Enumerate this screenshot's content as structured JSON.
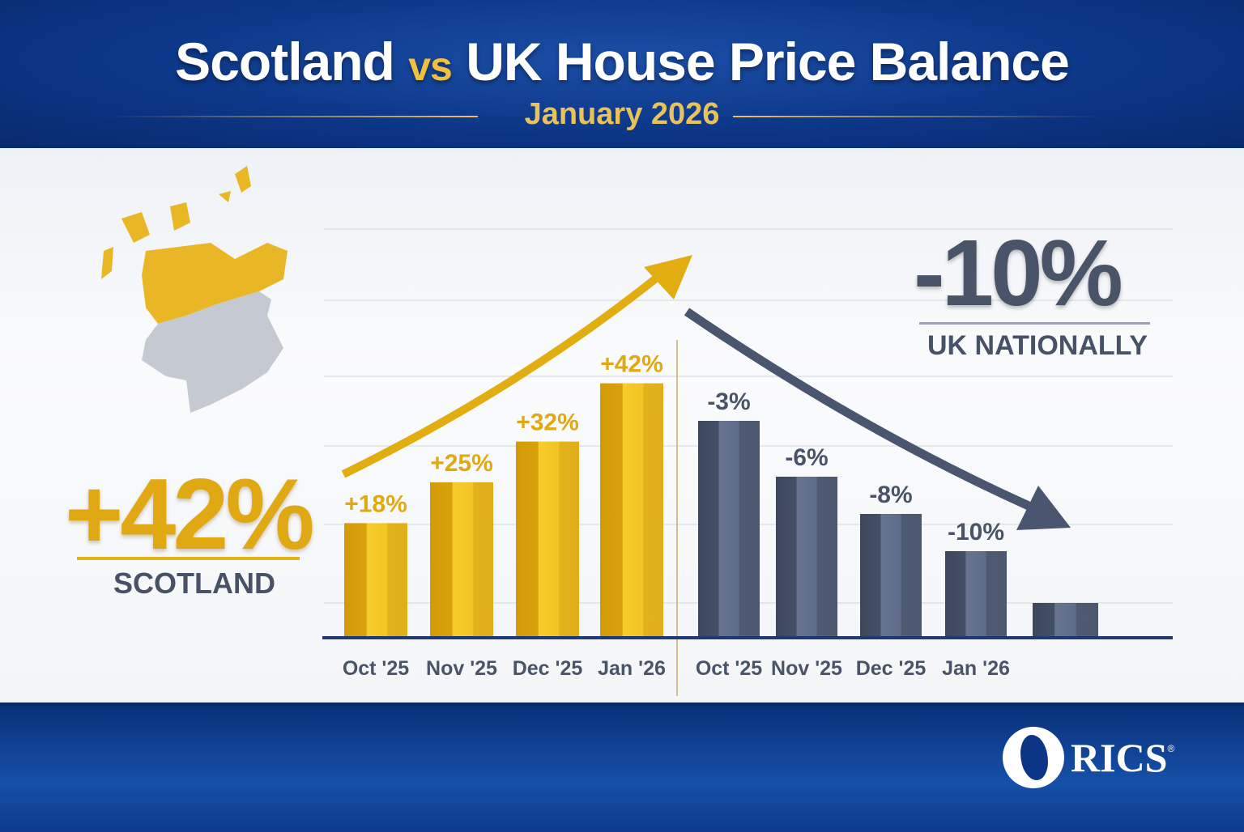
{
  "header": {
    "title_left": "Scotland",
    "title_vs": "vs",
    "title_right": "UK House Price Balance",
    "subtitle": "January 2026"
  },
  "scotland_callout": {
    "value": "+42%",
    "label": "SCOTLAND"
  },
  "uk_callout": {
    "value": "-10%",
    "label": "UK NATIONALLY"
  },
  "logo": {
    "text": "RICS"
  },
  "colors": {
    "gold": "#e8b418",
    "slate": "#4f5a72",
    "navy": "#0c3585"
  },
  "chart_data": {
    "type": "bar",
    "title": "Scotland vs UK House Price Balance",
    "subtitle": "January 2026",
    "categories": [
      "Oct '25",
      "Nov '25",
      "Dec '25",
      "Jan '26"
    ],
    "series": [
      {
        "name": "Scotland",
        "values": [
          18,
          25,
          32,
          42
        ],
        "labels": [
          "+18%",
          "+25%",
          "+32%",
          "+42%"
        ]
      },
      {
        "name": "UK",
        "values": [
          -3,
          -6,
          -8,
          -10
        ],
        "labels": [
          "-3%",
          "-6%",
          "-8%",
          "-10%"
        ]
      }
    ],
    "grid": true
  }
}
